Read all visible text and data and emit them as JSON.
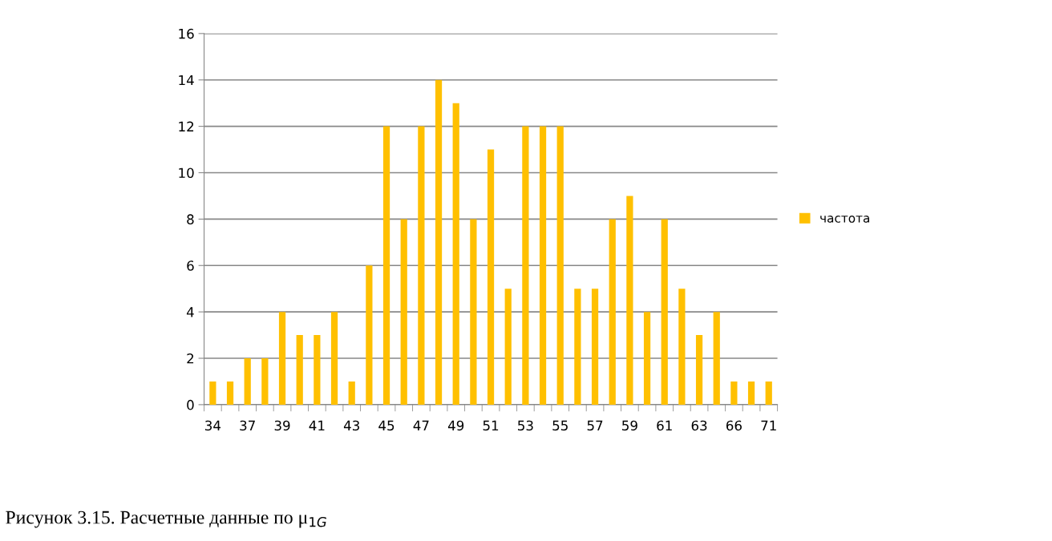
{
  "chart_data": {
    "type": "bar",
    "categories": [
      "34",
      null,
      "37",
      null,
      "39",
      null,
      "41",
      null,
      "43",
      null,
      "45",
      null,
      "47",
      null,
      "49",
      null,
      "51",
      null,
      "53",
      null,
      "55",
      null,
      "57",
      null,
      "59",
      null,
      "61",
      null,
      "63",
      null,
      "66",
      null,
      "71"
    ],
    "series": [
      {
        "name": "частота",
        "color": "#ffc000",
        "values": [
          1,
          1,
          2,
          2,
          4,
          3,
          3,
          4,
          1,
          6,
          12,
          8,
          12,
          14,
          13,
          8,
          11,
          5,
          12,
          12,
          12,
          5,
          5,
          8,
          9,
          4,
          8,
          5,
          3,
          4,
          1,
          1,
          1
        ]
      }
    ],
    "ylim": [
      0,
      16
    ],
    "yticks": [
      0,
      2,
      4,
      6,
      8,
      10,
      12,
      14,
      16
    ],
    "grid": "y",
    "legend": "right",
    "annotations": [
      "Рисунок 3.15. Расчетные данные по μ$_{1G}$"
    ]
  }
}
